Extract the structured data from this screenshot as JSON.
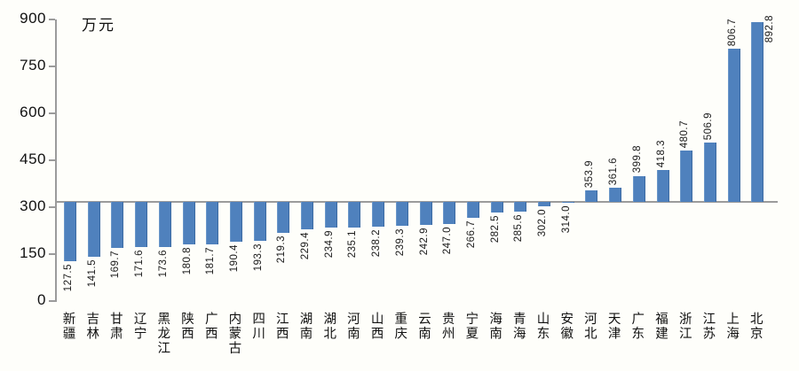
{
  "chart_data": {
    "type": "bar",
    "title": "",
    "unit_label": "万元",
    "categories": [
      "新疆",
      "吉林",
      "甘肃",
      "辽宁",
      "黑龙江",
      "陕西",
      "广西",
      "内蒙古",
      "四川",
      "江西",
      "湖南",
      "湖北",
      "河南",
      "山西",
      "重庆",
      "云南",
      "贵州",
      "宁夏",
      "海南",
      "青海",
      "山东",
      "安徽",
      "河北",
      "天津",
      "广东",
      "福建",
      "浙江",
      "江苏",
      "上海",
      "北京"
    ],
    "values": [
      127.5,
      141.5,
      169.7,
      171.6,
      173.6,
      180.8,
      181.7,
      190.4,
      193.3,
      219.3,
      229.4,
      234.9,
      235.1,
      238.2,
      239.3,
      242.9,
      247.0,
      266.7,
      282.5,
      285.6,
      302.0,
      314.0,
      353.9,
      361.6,
      399.8,
      418.3,
      480.7,
      506.9,
      806.7,
      892.8
    ],
    "value_labels": [
      "127.5",
      "141.5",
      "169.7",
      "171.6",
      "173.6",
      "180.8",
      "181.7",
      "190.4",
      "193.3",
      "219.3",
      "229.4",
      "234.9",
      "235.1",
      "238.2",
      "239.3",
      "242.9",
      "247.0",
      "266.7",
      "282.5",
      "285.6",
      "302.0",
      "314.0",
      "353.9",
      "361.6",
      "399.8",
      "418.3",
      "480.7",
      "506.9",
      "806.7",
      "892.8"
    ],
    "xlabel": "",
    "ylabel": "万元",
    "ylim": [
      0,
      900
    ],
    "yticks": [
      "0",
      "150",
      "300",
      "450",
      "600",
      "750",
      "900"
    ],
    "axis_crossing": 316,
    "grid": false,
    "legend": "none",
    "bar_color": "#4f81bd",
    "axis_color": "#9b9b9b",
    "text_color": "#111111",
    "background_color": "#fefefa"
  }
}
